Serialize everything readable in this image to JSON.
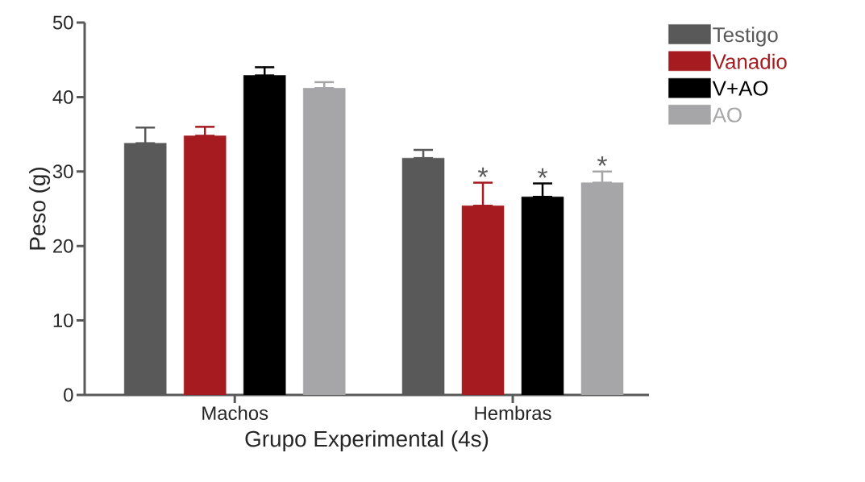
{
  "chart_data": {
    "type": "bar",
    "xlabel": "Grupo Experimental (4s)",
    "ylabel": "Peso (g)",
    "categories": [
      "Machos",
      "Hembras"
    ],
    "series": [
      {
        "name": "Testigo",
        "color": "#595959",
        "values": [
          33.8,
          31.8
        ],
        "errors": [
          [
            33.8,
            35.9
          ],
          [
            31.8,
            32.9
          ]
        ]
      },
      {
        "name": "Vanadio",
        "color": "#a51b1f",
        "values": [
          34.8,
          25.4
        ],
        "errors": [
          [
            34.8,
            36.0
          ],
          [
            25.4,
            28.5
          ]
        ]
      },
      {
        "name": "V+AO",
        "color": "#000000",
        "values": [
          42.9,
          26.6
        ],
        "errors": [
          [
            42.9,
            44.0
          ],
          [
            26.6,
            28.4
          ]
        ]
      },
      {
        "name": "AO",
        "color": "#a6a6a8",
        "values": [
          41.2,
          28.5
        ],
        "errors": [
          [
            41.2,
            42.0
          ],
          [
            28.5,
            30.0
          ]
        ]
      }
    ],
    "ylim": [
      0,
      50
    ],
    "yticks": [
      0,
      10,
      20,
      30,
      40,
      50
    ],
    "legend": "right",
    "grid": false,
    "annotations": [
      "*",
      "*",
      "*"
    ]
  }
}
